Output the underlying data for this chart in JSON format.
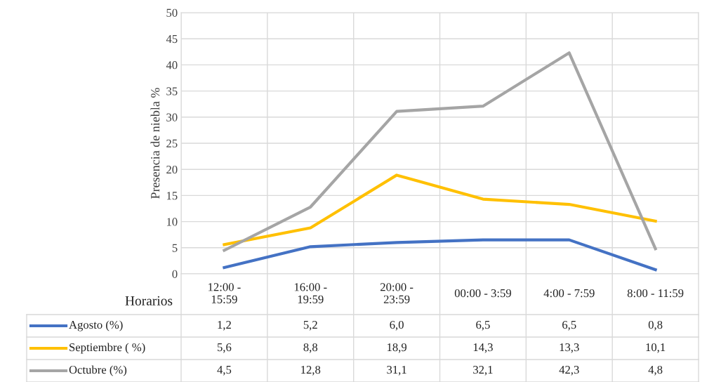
{
  "chart_data": {
    "type": "line",
    "ylabel": "Presencia de niebla %",
    "xlabel": "Horarios",
    "categories": [
      "12:00 -\n15:59",
      "16:00 -\n19:59",
      "20:00 -\n23:59",
      "00:00 - 3:59",
      "4:00 - 7:59",
      "8:00 - 11:59"
    ],
    "series": [
      {
        "name": "Agosto (%)",
        "color": "#4472c4",
        "values": [
          1.2,
          5.2,
          6.0,
          6.5,
          6.5,
          0.8
        ],
        "value_labels": [
          "1,2",
          "5,2",
          "6,0",
          "6,5",
          "6,5",
          "0,8"
        ]
      },
      {
        "name": "Septiembre ( %)",
        "color": "#ffc000",
        "values": [
          5.6,
          8.8,
          18.9,
          14.3,
          13.3,
          10.1
        ],
        "value_labels": [
          "5,6",
          "8,8",
          "18,9",
          "14,3",
          "13,3",
          "10,1"
        ]
      },
      {
        "name": "Octubre (%)",
        "color": "#a5a5a5",
        "values": [
          4.5,
          12.8,
          31.1,
          32.1,
          42.3,
          4.8
        ],
        "value_labels": [
          "4,5",
          "12,8",
          "31,1",
          "32,1",
          "42,3",
          "4,8"
        ]
      }
    ],
    "ylim": [
      0,
      50
    ],
    "yticks": [
      0,
      5,
      10,
      15,
      20,
      25,
      30,
      35,
      40,
      45,
      50
    ],
    "grid": true,
    "legend": "bottom",
    "marker": "none",
    "line_style": "solid"
  }
}
